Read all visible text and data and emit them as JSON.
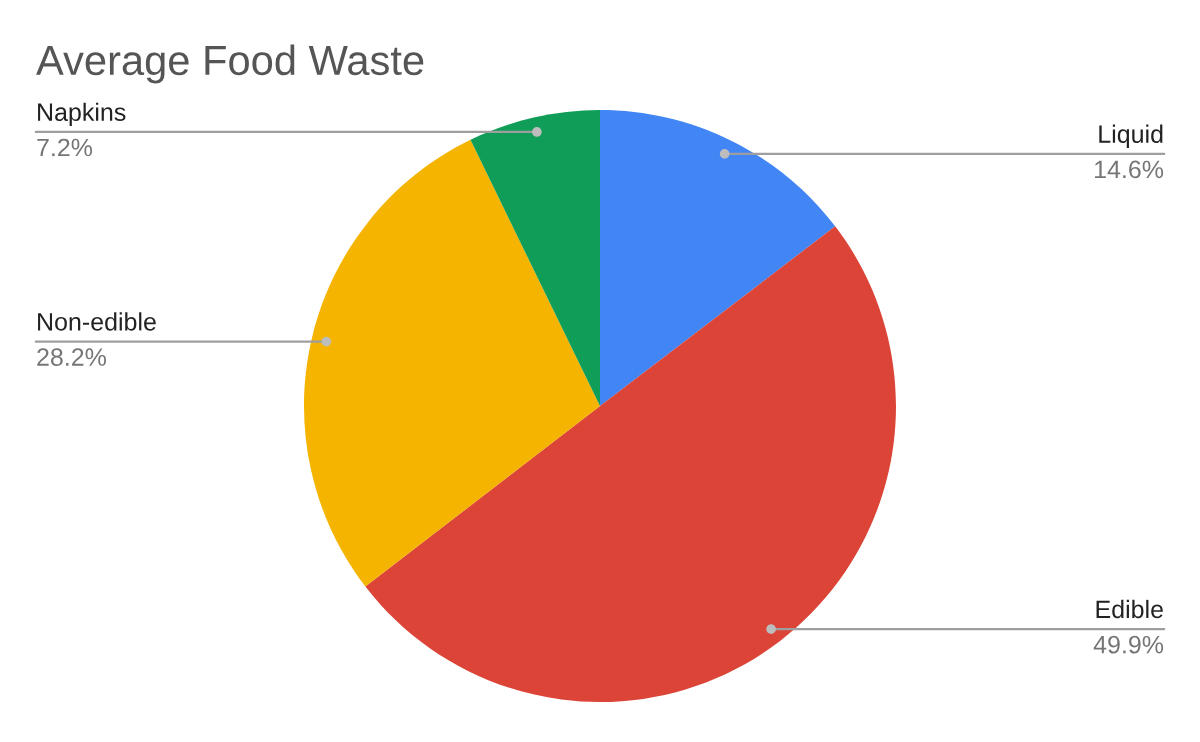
{
  "chart_data": {
    "type": "pie",
    "title": "Average Food Waste",
    "categories": [
      "Liquid",
      "Edible",
      "Non-edible",
      "Napkins"
    ],
    "values": [
      14.6,
      49.9,
      28.2,
      7.2
    ],
    "colors": [
      "#4285f4",
      "#db4437",
      "#f4b400",
      "#0f9d58"
    ],
    "value_labels": [
      "14.6%",
      "49.9%",
      "28.2%",
      "7.2%"
    ],
    "legend": false
  }
}
